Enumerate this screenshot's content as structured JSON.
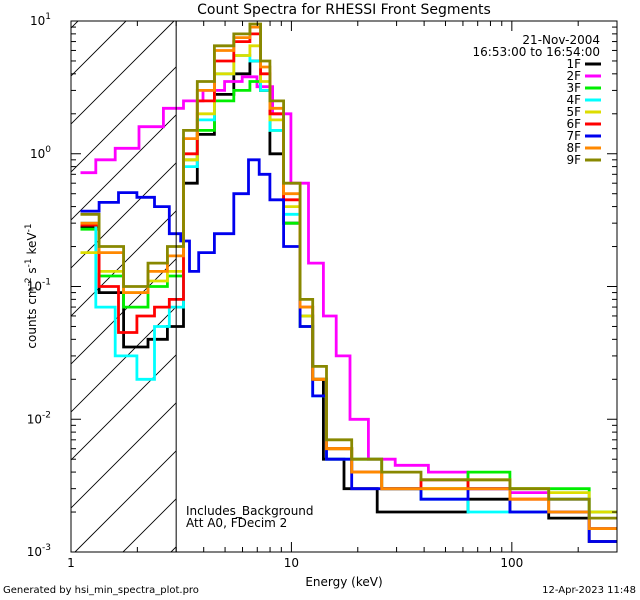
{
  "chart_data": {
    "type": "line",
    "title": "Count Spectra for RHESSI Front Segments",
    "xlabel": "Energy (keV)",
    "ylabel": "counts cm^-2 s^-1 keV^-1",
    "xscale": "log",
    "yscale": "log",
    "xlim": [
      1,
      300
    ],
    "ylim": [
      0.001,
      10
    ],
    "x_ticks": [
      {
        "value": 1,
        "label": "1"
      },
      {
        "value": 10,
        "label": "10"
      },
      {
        "value": 100,
        "label": "100"
      }
    ],
    "y_ticks": [
      {
        "value": 0.001,
        "label": "10^-3"
      },
      {
        "value": 0.01,
        "label": "10^-2"
      },
      {
        "value": 0.1,
        "label": "10^-1"
      },
      {
        "value": 1,
        "label": "10^0"
      },
      {
        "value": 10,
        "label": "10^1"
      }
    ],
    "date": "21-Nov-2004",
    "time_range": "16:53:00 to 16:54:00",
    "annotation_lines": [
      "Includes_Background",
      "Att A0, FDecim 2"
    ],
    "shaded_region_xmax": 3,
    "footer_left": "Generated by hsi_min_spectra_plot.pro",
    "footer_right": "12-Apr-2023 11:48",
    "series": [
      {
        "name": "1F",
        "color": "#000000",
        "points": [
          [
            1.2,
            0.28
          ],
          [
            1.5,
            0.09
          ],
          [
            2.0,
            0.035
          ],
          [
            2.5,
            0.04
          ],
          [
            3.0,
            0.05
          ],
          [
            3.5,
            0.6
          ],
          [
            4.0,
            1.4
          ],
          [
            5.0,
            2.8
          ],
          [
            6.0,
            4.0
          ],
          [
            7.0,
            5.0
          ],
          [
            7.5,
            3.0
          ],
          [
            8.5,
            1.0
          ],
          [
            10,
            0.3
          ],
          [
            12,
            0.06
          ],
          [
            13,
            0.02
          ],
          [
            15,
            0.005
          ],
          [
            20,
            0.003
          ],
          [
            30,
            0.002
          ],
          [
            50,
            0.002
          ],
          [
            80,
            0.0025
          ],
          [
            120,
            0.002
          ],
          [
            180,
            0.0018
          ],
          [
            280,
            0.0012
          ]
        ]
      },
      {
        "name": "2F",
        "color": "#ff00ff",
        "points": [
          [
            1.2,
            0.72
          ],
          [
            1.4,
            0.9
          ],
          [
            1.8,
            1.1
          ],
          [
            2.3,
            1.6
          ],
          [
            3.0,
            2.2
          ],
          [
            3.5,
            2.5
          ],
          [
            4.5,
            3.0
          ],
          [
            5.5,
            3.5
          ],
          [
            6.5,
            3.8
          ],
          [
            7.5,
            3.2
          ],
          [
            9.0,
            2.0
          ],
          [
            11,
            0.6
          ],
          [
            13,
            0.15
          ],
          [
            15,
            0.06
          ],
          [
            17,
            0.03
          ],
          [
            20,
            0.01
          ],
          [
            25,
            0.005
          ],
          [
            35,
            0.0045
          ],
          [
            50,
            0.004
          ],
          [
            80,
            0.003
          ],
          [
            120,
            0.0028
          ],
          [
            180,
            0.0025
          ],
          [
            280,
            0.0015
          ]
        ]
      },
      {
        "name": "3F",
        "color": "#00ee00",
        "points": [
          [
            1.2,
            0.27
          ],
          [
            1.5,
            0.12
          ],
          [
            2.0,
            0.07
          ],
          [
            2.5,
            0.1
          ],
          [
            3.0,
            0.12
          ],
          [
            3.5,
            0.9
          ],
          [
            4.0,
            1.5
          ],
          [
            5.0,
            2.5
          ],
          [
            6.0,
            3.0
          ],
          [
            7.0,
            3.5
          ],
          [
            7.5,
            3.0
          ],
          [
            8.5,
            1.5
          ],
          [
            10,
            0.3
          ],
          [
            12,
            0.05
          ],
          [
            13,
            0.02
          ],
          [
            16,
            0.006
          ],
          [
            22,
            0.005
          ],
          [
            30,
            0.003
          ],
          [
            50,
            0.003
          ],
          [
            80,
            0.004
          ],
          [
            120,
            0.003
          ],
          [
            180,
            0.003
          ],
          [
            280,
            0.002
          ]
        ]
      },
      {
        "name": "4F",
        "color": "#00ffff",
        "points": [
          [
            1.2,
            0.3
          ],
          [
            1.4,
            0.07
          ],
          [
            1.8,
            0.03
          ],
          [
            2.2,
            0.02
          ],
          [
            2.6,
            0.05
          ],
          [
            3.0,
            0.07
          ],
          [
            3.5,
            0.8
          ],
          [
            4.0,
            1.8
          ],
          [
            5.0,
            4.0
          ],
          [
            6.0,
            5.5
          ],
          [
            7.0,
            5.0
          ],
          [
            7.5,
            3.0
          ],
          [
            8.5,
            1.5
          ],
          [
            10,
            0.35
          ],
          [
            12,
            0.06
          ],
          [
            13,
            0.015
          ],
          [
            16,
            0.005
          ],
          [
            22,
            0.004
          ],
          [
            30,
            0.003
          ],
          [
            50,
            0.0025
          ],
          [
            80,
            0.002
          ],
          [
            120,
            0.002
          ],
          [
            180,
            0.0025
          ],
          [
            280,
            0.0015
          ]
        ]
      },
      {
        "name": "5F",
        "color": "#dddd00",
        "points": [
          [
            1.2,
            0.18
          ],
          [
            1.5,
            0.13
          ],
          [
            2.0,
            0.09
          ],
          [
            2.5,
            0.11
          ],
          [
            3.0,
            0.13
          ],
          [
            3.5,
            0.9
          ],
          [
            4.0,
            2.0
          ],
          [
            5.0,
            4.0
          ],
          [
            6.0,
            5.5
          ],
          [
            7.0,
            6.5
          ],
          [
            7.5,
            3.5
          ],
          [
            8.5,
            1.8
          ],
          [
            10,
            0.4
          ],
          [
            12,
            0.06
          ],
          [
            13,
            0.02
          ],
          [
            16,
            0.006
          ],
          [
            22,
            0.004
          ],
          [
            30,
            0.003
          ],
          [
            50,
            0.003
          ],
          [
            80,
            0.0035
          ],
          [
            120,
            0.003
          ],
          [
            180,
            0.0028
          ],
          [
            280,
            0.002
          ]
        ]
      },
      {
        "name": "6F",
        "color": "#ff0000",
        "points": [
          [
            1.2,
            0.29
          ],
          [
            1.5,
            0.1
          ],
          [
            1.8,
            0.045
          ],
          [
            2.2,
            0.06
          ],
          [
            2.6,
            0.07
          ],
          [
            3.0,
            0.08
          ],
          [
            3.5,
            1.0
          ],
          [
            4.0,
            2.5
          ],
          [
            5.0,
            5.0
          ],
          [
            6.0,
            7.0
          ],
          [
            7.0,
            8.0
          ],
          [
            7.5,
            4.0
          ],
          [
            8.5,
            2.0
          ],
          [
            10,
            0.45
          ],
          [
            12,
            0.07
          ],
          [
            13,
            0.02
          ],
          [
            16,
            0.006
          ],
          [
            22,
            0.004
          ],
          [
            30,
            0.003
          ],
          [
            50,
            0.0035
          ],
          [
            80,
            0.003
          ],
          [
            120,
            0.0025
          ],
          [
            180,
            0.002
          ],
          [
            280,
            0.0015
          ]
        ]
      },
      {
        "name": "7F",
        "color": "#0000ee",
        "points": [
          [
            1.2,
            0.37
          ],
          [
            1.5,
            0.43
          ],
          [
            1.8,
            0.51
          ],
          [
            2.2,
            0.47
          ],
          [
            2.6,
            0.4
          ],
          [
            3.0,
            0.25
          ],
          [
            3.3,
            0.22
          ],
          [
            3.6,
            0.13
          ],
          [
            4.0,
            0.18
          ],
          [
            5.0,
            0.25
          ],
          [
            6.0,
            0.5
          ],
          [
            6.8,
            0.9
          ],
          [
            7.5,
            0.7
          ],
          [
            8.5,
            0.45
          ],
          [
            10,
            0.2
          ],
          [
            12,
            0.05
          ],
          [
            13,
            0.015
          ],
          [
            16,
            0.005
          ],
          [
            22,
            0.003
          ],
          [
            30,
            0.003
          ],
          [
            50,
            0.0025
          ],
          [
            80,
            0.003
          ],
          [
            120,
            0.002
          ],
          [
            180,
            0.002
          ],
          [
            280,
            0.0012
          ]
        ]
      },
      {
        "name": "8F",
        "color": "#ff8800",
        "points": [
          [
            1.2,
            0.3
          ],
          [
            1.5,
            0.18
          ],
          [
            2.0,
            0.09
          ],
          [
            2.5,
            0.13
          ],
          [
            3.0,
            0.17
          ],
          [
            3.5,
            1.3
          ],
          [
            4.0,
            3.0
          ],
          [
            5.0,
            6.0
          ],
          [
            6.0,
            7.5
          ],
          [
            7.0,
            9.0
          ],
          [
            7.5,
            4.5
          ],
          [
            8.5,
            2.2
          ],
          [
            10,
            0.5
          ],
          [
            12,
            0.07
          ],
          [
            13,
            0.02
          ],
          [
            16,
            0.006
          ],
          [
            22,
            0.004
          ],
          [
            30,
            0.003
          ],
          [
            50,
            0.003
          ],
          [
            80,
            0.003
          ],
          [
            120,
            0.0025
          ],
          [
            180,
            0.002
          ],
          [
            280,
            0.0015
          ]
        ]
      },
      {
        "name": "9F",
        "color": "#888800",
        "points": [
          [
            1.2,
            0.35
          ],
          [
            1.5,
            0.2
          ],
          [
            2.0,
            0.1
          ],
          [
            2.5,
            0.15
          ],
          [
            3.0,
            0.2
          ],
          [
            3.5,
            1.5
          ],
          [
            4.0,
            3.5
          ],
          [
            5.0,
            6.5
          ],
          [
            6.0,
            8.0
          ],
          [
            7.0,
            9.5
          ],
          [
            7.5,
            5.0
          ],
          [
            8.5,
            2.5
          ],
          [
            10,
            0.6
          ],
          [
            12,
            0.08
          ],
          [
            13,
            0.025
          ],
          [
            16,
            0.007
          ],
          [
            22,
            0.005
          ],
          [
            30,
            0.004
          ],
          [
            50,
            0.0035
          ],
          [
            80,
            0.0035
          ],
          [
            120,
            0.003
          ],
          [
            180,
            0.0025
          ],
          [
            280,
            0.0018
          ]
        ]
      }
    ]
  }
}
